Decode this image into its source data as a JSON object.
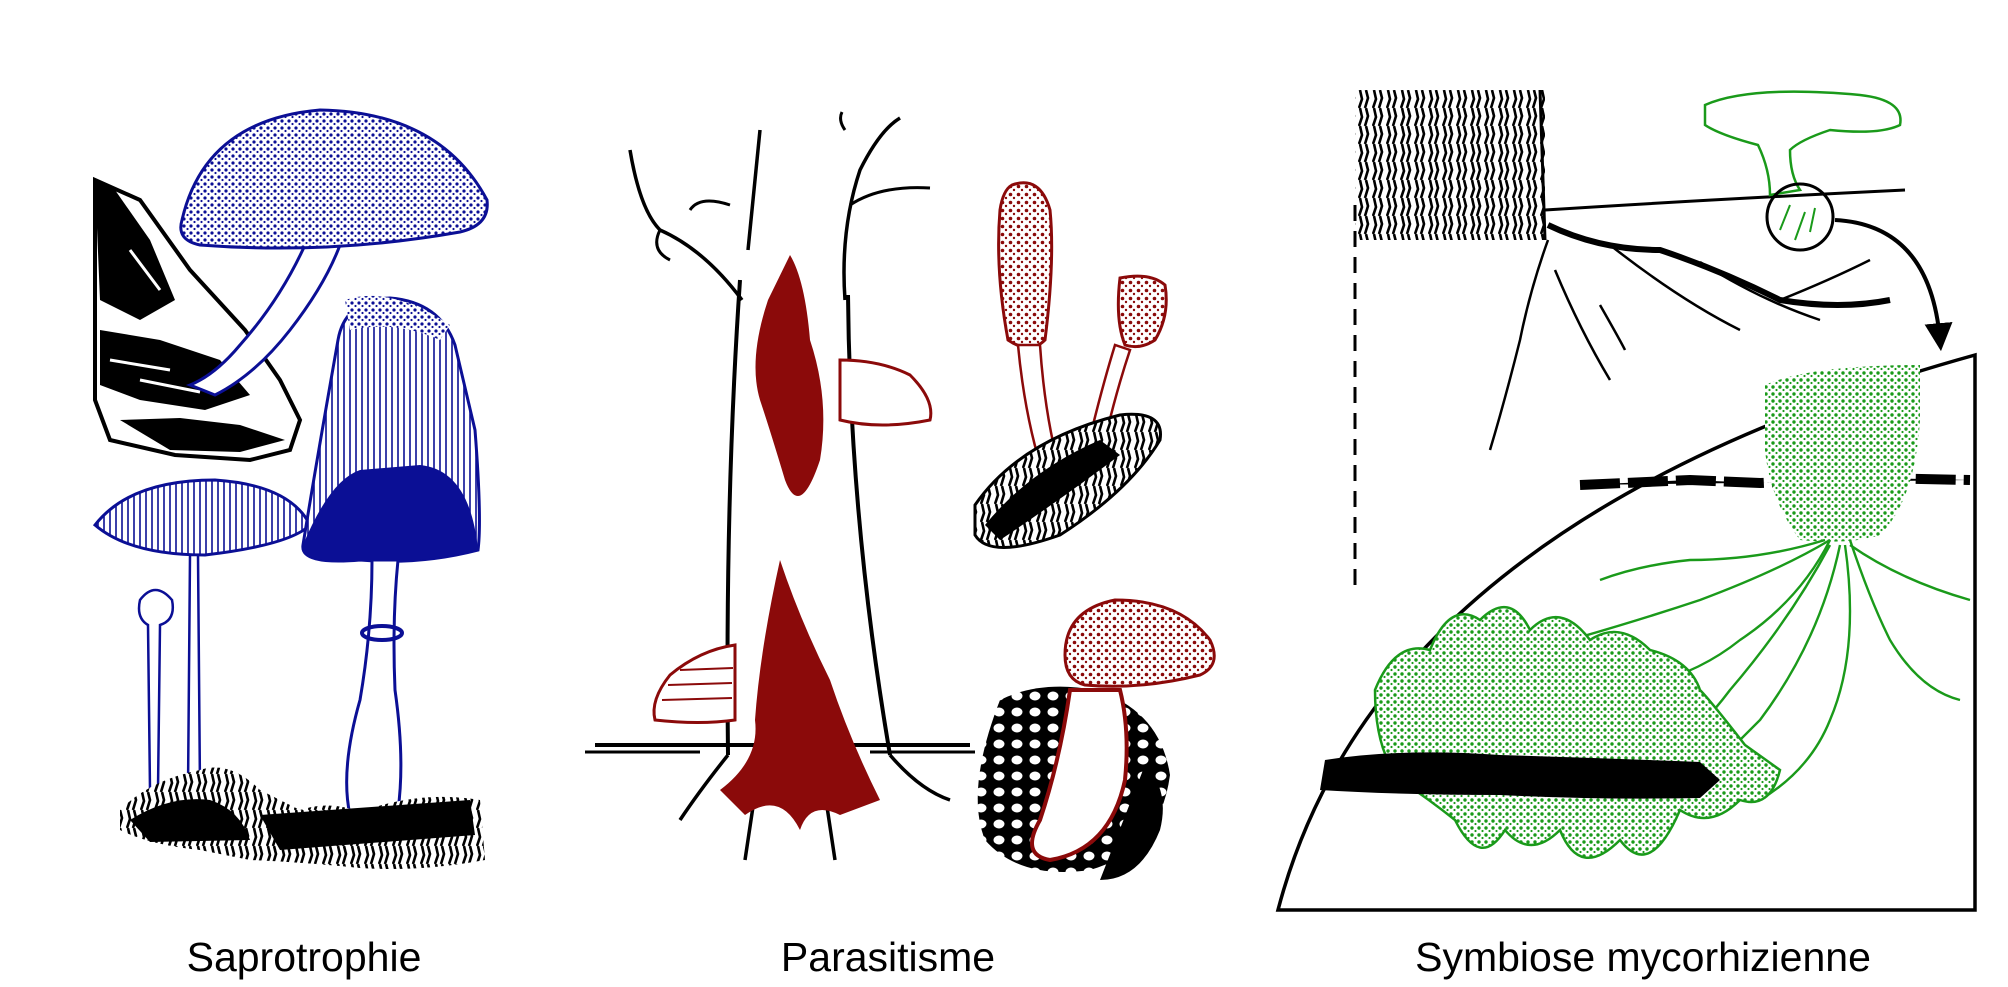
{
  "panels": [
    {
      "caption": "Saprotrophie"
    },
    {
      "caption": "Parasitisme"
    },
    {
      "caption": "Symbiose mycorhizienne"
    }
  ],
  "colors": {
    "saprotroph": "#0b0f95",
    "parasite": "#8b0a0a",
    "mycorrhiza": "#1a9a1a",
    "ink": "#000000"
  }
}
